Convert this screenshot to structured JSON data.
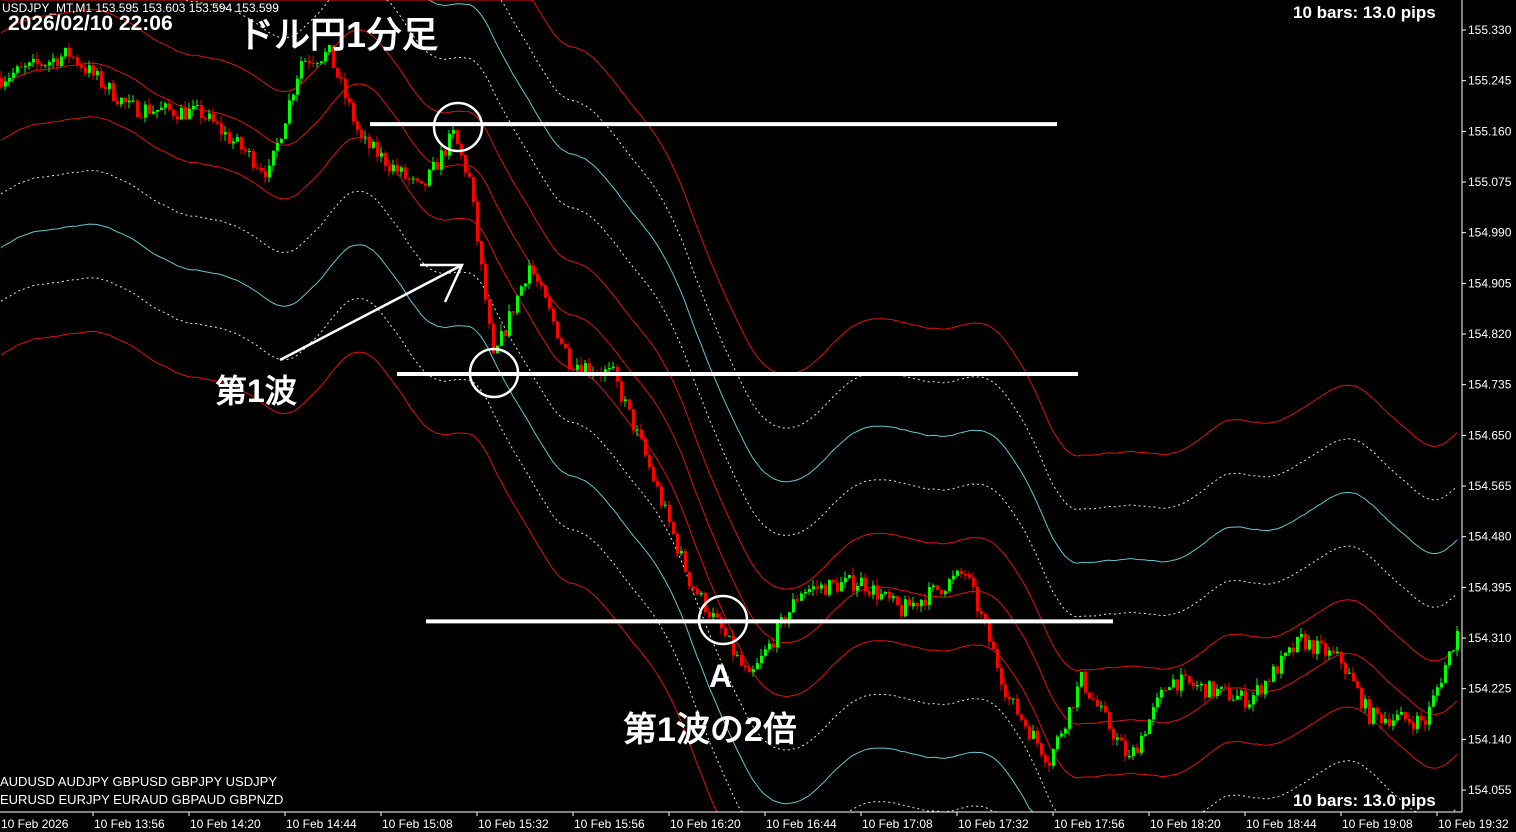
{
  "header": {
    "symbol_info": "USDJPY_MT,M1  153.595 153.603 153.594 153.599",
    "datetime": "2026/02/10 22:06",
    "title": "ドル円1分足"
  },
  "pips_top": "10 bars: 13.0 pips",
  "pips_bottom": "10 bars: 13.0 pips",
  "symbols": {
    "row1": "AUDUSD AUDJPY  GBPUSD GBPJPY  USDJPY",
    "row2": "EURUSD EURJPY  EURAUD GBPAUD GBPNZD"
  },
  "annotations": {
    "wave1": "第1波",
    "a": "A",
    "double": "第1波の2倍"
  },
  "colors": {
    "background": "#000000",
    "bull": "#00ff00",
    "bear": "#ff0000",
    "ma": "#e01010",
    "band_cyan": "#5fc8d0",
    "band_dotted": "#e8e8c0",
    "axis": "#ffffff"
  },
  "chart_data": {
    "type": "candlestick",
    "symbol": "USDJPY_MT",
    "timeframe": "M1",
    "ylim": [
      154.03,
      155.35
    ],
    "y_ticks": [
      "155.330",
      "155.245",
      "155.160",
      "155.075",
      "154.990",
      "154.905",
      "154.820",
      "154.735",
      "154.650",
      "154.565",
      "154.480",
      "154.395",
      "154.310",
      "154.225",
      "154.140",
      "154.055"
    ],
    "x_ticks": [
      "10 Feb 2026",
      "10 Feb 13:56",
      "10 Feb 14:20",
      "10 Feb 14:44",
      "10 Feb 15:08",
      "10 Feb 15:32",
      "10 Feb 15:56",
      "10 Feb 16:20",
      "10 Feb 16:44",
      "10 Feb 17:08",
      "10 Feb 17:32",
      "10 Feb 17:56",
      "10 Feb 18:20",
      "10 Feb 18:44",
      "10 Feb 19:08",
      "10 Feb 19:32"
    ],
    "time_range": [
      "13:33",
      "19:37"
    ],
    "price_path": [
      [
        "13:33",
        155.25
      ],
      [
        "13:50",
        155.29
      ],
      [
        "14:05",
        155.2
      ],
      [
        "14:23",
        155.19
      ],
      [
        "14:40",
        155.09
      ],
      [
        "14:48",
        155.28
      ],
      [
        "14:55",
        155.29
      ],
      [
        "15:03",
        155.145
      ],
      [
        "15:18",
        155.06
      ],
      [
        "15:26",
        155.154
      ],
      [
        "15:30",
        155.08
      ],
      [
        "15:36",
        154.776
      ],
      [
        "15:45",
        154.936
      ],
      [
        "15:55",
        154.776
      ],
      [
        "16:06",
        154.751
      ],
      [
        "16:13",
        154.634
      ],
      [
        "16:25",
        154.407
      ],
      [
        "16:33",
        154.323
      ],
      [
        "16:40",
        154.239
      ],
      [
        "16:53",
        154.39
      ],
      [
        "17:08",
        154.405
      ],
      [
        "17:18",
        154.356
      ],
      [
        "17:34",
        154.42
      ],
      [
        "17:40",
        154.306
      ],
      [
        "17:45",
        154.206
      ],
      [
        "17:55",
        154.105
      ],
      [
        "18:03",
        154.24
      ],
      [
        "18:15",
        154.105
      ],
      [
        "18:25",
        154.24
      ],
      [
        "18:45",
        154.206
      ],
      [
        "18:58",
        154.306
      ],
      [
        "19:08",
        154.272
      ],
      [
        "19:15",
        154.18
      ],
      [
        "19:29",
        154.17
      ],
      [
        "19:37",
        154.32
      ]
    ],
    "ma_period": 20,
    "band_offsets": [
      0.09,
      0.18,
      0.27,
      0.36,
      0.45
    ],
    "hlines": [
      155.172,
      154.753,
      154.338
    ]
  }
}
